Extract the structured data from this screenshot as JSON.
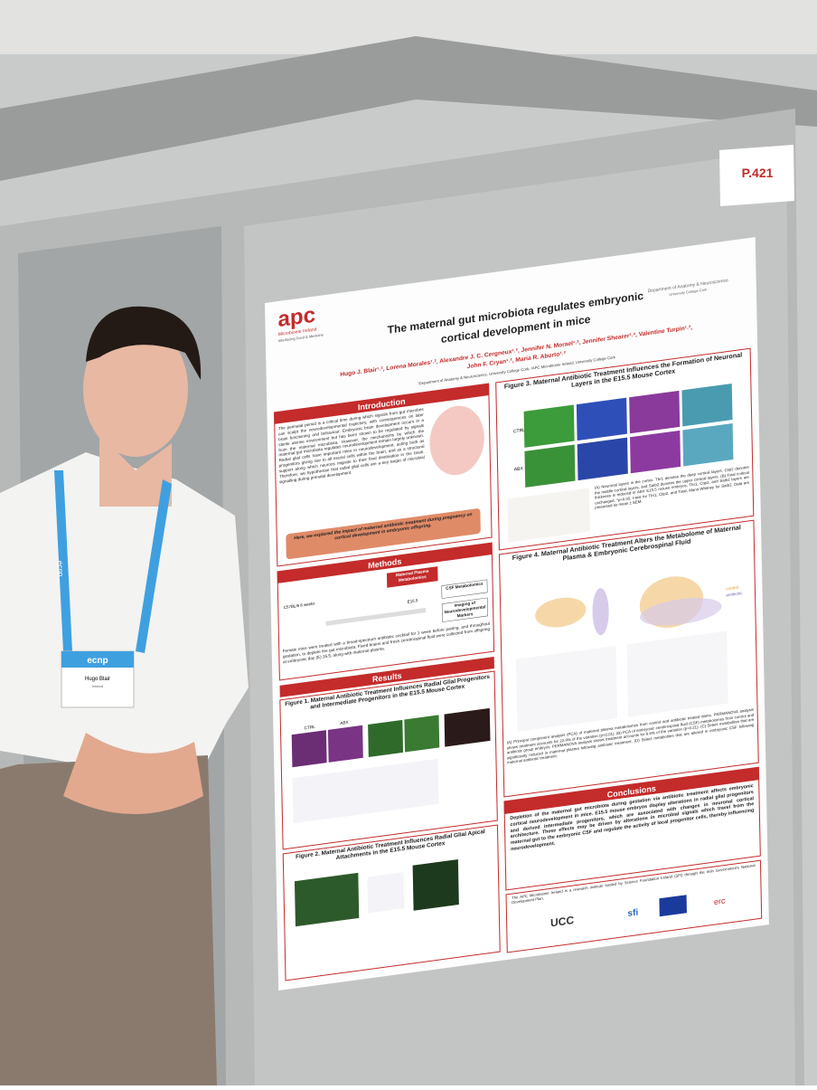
{
  "sign": "P.421",
  "badge": {
    "lanyard": "ecnp",
    "brand": "ecnp",
    "name": "Hugo Blair",
    "country": "Ireland"
  },
  "poster": {
    "logo": "apc",
    "logo_sub": "Microbiome Ireland",
    "logo_tag": "Interfacing Food & Medicine",
    "dept": "Department of Anatomy & Neuroscience",
    "dept_sub": "University College Cork",
    "title_1": "The maternal gut microbiota regulates embryonic",
    "title_2": "cortical development in mice",
    "authors_1": "Hugo J. Blair¹˒², Lorena Morales¹˒², Alexandre J. C. Cergneux¹˒², Jennifer N. Morael¹˒², Jennifer Shearer¹˒², Valentine Turpin¹˒²,",
    "authors_2": "John F. Cryan¹˒², Maria R. Aburto¹˒²",
    "affiliation": "¹Department of Anatomy & Neuroscience, University College Cork, ²APC Microbiome Ireland, University College Cork",
    "intro": {
      "heading": "Introduction",
      "text": "The perinatal period is a critical time during which signals from gut microbes can sculpt the neurodevelopmental trajectory, with consequences on later brain functioning and behaviour. Embryonic brain development occurs in a sterile uterine environment but has been shown to be regulated by signals from the maternal microbiota. However, the mechanisms by which the maternal gut microbiota regulates neurodevelopment remain largely unknown. Radial glial cells have important roles in neurodevelopment, acting both as progenitors giving rise to all neural cells within the brain, and as a structural support along which neurons migrate to their final destination in the brain. Therefore, we hypothesise that radial glial cells are a key target of microbial signalling during prenatal development.",
      "aim": "Here, we explored the impact of maternal antibiotic treatment during pregnancy on cortical development in embryonic offspring."
    },
    "methods": {
      "heading": "Methods",
      "mouse": "C57BL/6 8 weeks",
      "e155": "E15.5",
      "box1": "Maternal Plasma Metabolomics",
      "box2": "CSF Metabolomics",
      "box3": "Imaging of Neurodevelopmental Markers",
      "text": "Female mice were treated with a broad-spectrum antibiotic cocktail for 1 week before pairing, and throughout gestation, to deplete the gut microbiota. Fixed brains and fresh cerebrospinal fluid were collected from offspring at embryonic day (E) 15.5, along with maternal plasma."
    },
    "results": {
      "heading": "Results",
      "fig1": {
        "title": "Figure 1. Maternal Antibiotic Treatment Influences Radial Glial Progenitors and Intermediate Progenitors in the E15.5 Mouse Cortex",
        "ctrl": "CTRL",
        "abx": "ABX"
      },
      "fig2": {
        "title": "Figure 2. Maternal Antibiotic Treatment Influences Radial Glial Apical Attachments in the E15.5 Mouse Cortex"
      }
    },
    "fig3": {
      "title": "Figure 3. Maternal Antibiotic Treatment Influences the Formation of Neuronal Layers in the E15.5 Mouse Cortex",
      "ctrl": "CTRL",
      "abx": "ABX",
      "caption": "(A) Neuronal layers in the cortex. Tbr1 denotes the deep cortical layers, Ctip2 denotes the middle cortical layers, and Satb2 denotes the upper cortical layers. (B) Total cortical thickness is reduced in ABX E15.5 mouse embryos, Tbr1, Ctip2, and Satb2 layers are unchanged. *p<0.05, t-test for Tbr1, Ctip2, and Total, Mann-Whitney for Satb2. Data are presented as mean ± SEM."
    },
    "fig4": {
      "title": "Figure 4. Maternal Antibiotic Treatment Alters the Metabolome of Maternal Plasma & Embryonic Cerebrospinal Fluid",
      "legend_control": "control",
      "legend_abx": "antibiotic",
      "caption": "(A) Principal component analysis (PCA) of maternal plasma metabolomes from control and antibiotic treated dams. PERMANOVA analysis shows treatment accounts for 22.9% of the variation (p<0.01). (B) PCA of embryonic cerebrospinal fluid (CSF) metabolomes from control and antibiotic group embryos. PERMANOVA analysis shows treatment accounts for 6.6% of the variation (p=0.21). (C) Select metabolites that are significantly reduced in maternal plasma following antibiotic treatment. (D) Select metabolites that are altered in embryonic CSF following maternal antibiotic treatment."
    },
    "conclusions": {
      "heading": "Conclusions",
      "text": "Depletion of the maternal gut microbiota during gestation via antibiotic treatment affects embryonic cortical neurodevelopment in mice. E15.5 mouse embryos display alterations in radial glial progenitors and derived intermediate progenitors, which are associated with changes in neuronal cortical architecture. These effects may be driven by alterations in microbial signals which travel from the maternal gut to the embryonic CSF and regulate the activity of local progenitor cells, thereby influencing neurodevelopment."
    },
    "funding": "The APC Microbiome Ireland is a research institute funded by Science Foundation Ireland (SFI) through the Irish Government's National Development Plan.",
    "logos": {
      "ucc": "UCC",
      "sfi": "sfi",
      "erc": "erc"
    }
  }
}
